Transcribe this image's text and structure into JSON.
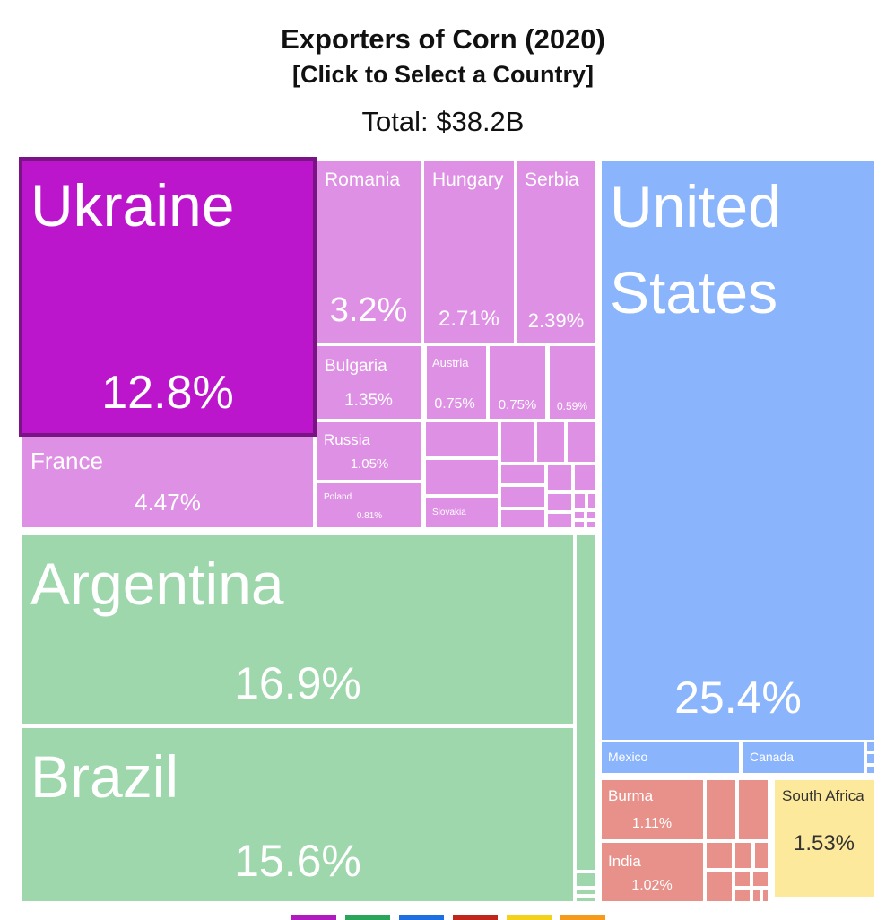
{
  "chart_data": {
    "type": "treemap",
    "title": "Exporters of Corn (2020)",
    "subtitle": "[Click to Select a Country]",
    "total": "Total: $38.2B",
    "selected": "Ukraine",
    "region_colors": {
      "europe": "#de90e4",
      "ukraine": "#bb16cc",
      "south_america": "#9dd7ab",
      "north_america": "#8ab4fb",
      "asia": "#e8918b",
      "africa": "#fde99b"
    },
    "items": [
      {
        "name": "Ukraine",
        "share": 12.8,
        "label": "12.8%",
        "region": "europe"
      },
      {
        "name": "France",
        "share": 4.47,
        "label": "4.47%",
        "region": "europe"
      },
      {
        "name": "Romania",
        "share": 3.2,
        "label": "3.2%",
        "region": "europe"
      },
      {
        "name": "Hungary",
        "share": 2.71,
        "label": "2.71%",
        "region": "europe"
      },
      {
        "name": "Serbia",
        "share": 2.39,
        "label": "2.39%",
        "region": "europe"
      },
      {
        "name": "Bulgaria",
        "share": 1.35,
        "label": "1.35%",
        "region": "europe"
      },
      {
        "name": "Austria",
        "share": 0.75,
        "label": "0.75%",
        "region": "europe"
      },
      {
        "name": "",
        "share": 0.75,
        "label": "0.75%",
        "region": "europe"
      },
      {
        "name": "",
        "share": 0.59,
        "label": "0.59%",
        "region": "europe"
      },
      {
        "name": "Russia",
        "share": 1.05,
        "label": "1.05%",
        "region": "europe"
      },
      {
        "name": "Poland",
        "share": 0.81,
        "label": "0.81%",
        "region": "europe"
      },
      {
        "name": "Slovakia",
        "share": null,
        "label": "",
        "region": "europe"
      },
      {
        "name": "Argentina",
        "share": 16.9,
        "label": "16.9%",
        "region": "south_america"
      },
      {
        "name": "Brazil",
        "share": 15.6,
        "label": "15.6%",
        "region": "south_america"
      },
      {
        "name": "United States",
        "share": 25.4,
        "label": "25.4%",
        "region": "north_america"
      },
      {
        "name": "Mexico",
        "share": null,
        "label": "",
        "region": "north_america"
      },
      {
        "name": "Canada",
        "share": null,
        "label": "",
        "region": "north_america"
      },
      {
        "name": "Burma",
        "share": 1.11,
        "label": "1.11%",
        "region": "asia"
      },
      {
        "name": "India",
        "share": 1.02,
        "label": "1.02%",
        "region": "asia"
      },
      {
        "name": "South Africa",
        "share": 1.53,
        "label": "1.53%",
        "region": "africa"
      }
    ],
    "legend_colors": [
      "#b01bbf",
      "#2aa55a",
      "#1e6fe0",
      "#c0261a",
      "#f5d21a",
      "#f59a1a"
    ]
  }
}
